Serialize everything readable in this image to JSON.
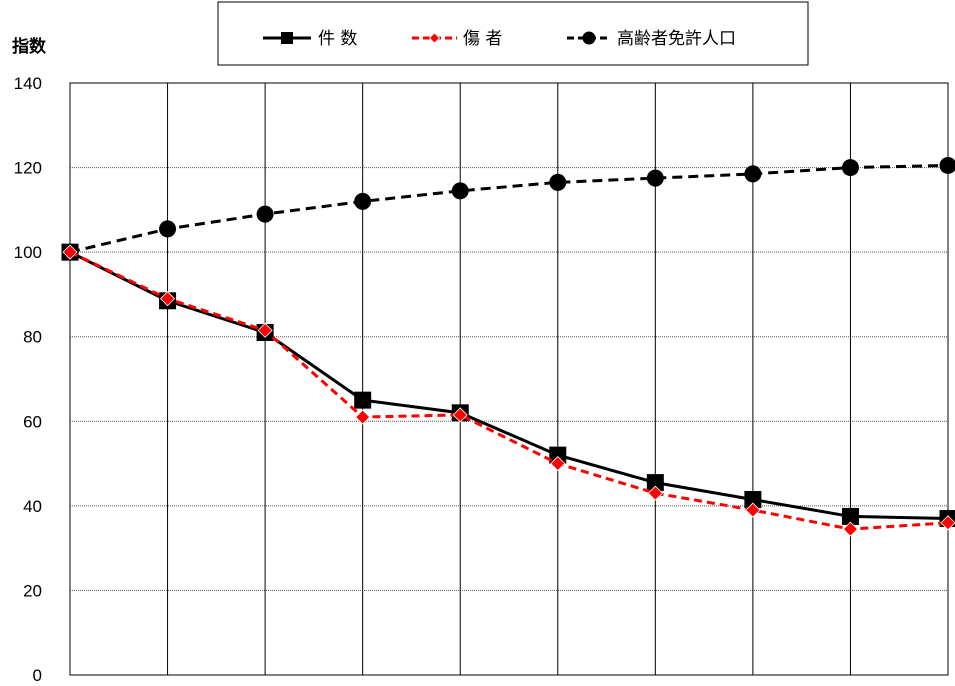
{
  "chart_data": {
    "type": "line",
    "ylabel": "指数",
    "ylim": [
      0,
      140
    ],
    "yticks": [
      0,
      20,
      40,
      60,
      80,
      100,
      120,
      140
    ],
    "x": [
      1,
      2,
      3,
      4,
      5,
      6,
      7,
      8,
      9,
      10
    ],
    "grid": "horizontal and vertical",
    "legend_position": "top",
    "series": [
      {
        "name": "件 数",
        "color": "#000000",
        "line_style": "solid",
        "marker": "square",
        "values": [
          100,
          88.5,
          81,
          65,
          62,
          52,
          45.5,
          41.5,
          37.5,
          37
        ]
      },
      {
        "name": "傷 者",
        "color": "#ff0000",
        "line_style": "dashed",
        "marker": "diamond",
        "values": [
          100,
          89,
          81.5,
          61,
          61.5,
          50,
          43,
          39,
          34.5,
          36
        ]
      },
      {
        "name": "高齢者免許人口",
        "color": "#000000",
        "line_style": "dashed",
        "marker": "circle",
        "values": [
          100,
          105.5,
          109,
          112,
          114.5,
          116.5,
          117.5,
          118.5,
          120,
          120.5
        ]
      }
    ]
  }
}
